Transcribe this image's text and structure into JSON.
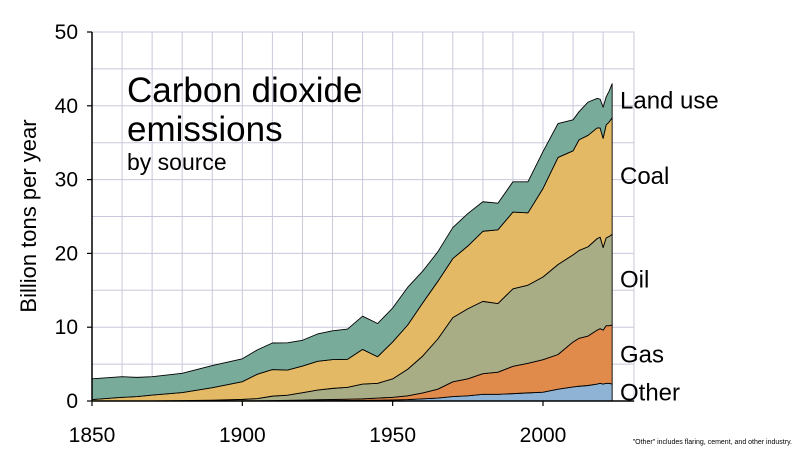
{
  "chart_data": {
    "type": "area",
    "stacked": true,
    "title": "Carbon dioxide emissions",
    "subtitle": "by source",
    "xlabel": "",
    "ylabel": "Billion tons per year",
    "xlim": [
      1850,
      2023
    ],
    "ylim": [
      0,
      50
    ],
    "x_ticks": [
      1850,
      1900,
      1950,
      2000
    ],
    "y_ticks": [
      0,
      10,
      20,
      30,
      40,
      50
    ],
    "grid": true,
    "legend": "inline labels at right edge",
    "footnote": "\"Other\" includes flaring, cement, and other industry.",
    "x": [
      1850,
      1860,
      1865,
      1870,
      1880,
      1890,
      1900,
      1905,
      1910,
      1915,
      1920,
      1925,
      1930,
      1935,
      1940,
      1945,
      1950,
      1955,
      1960,
      1965,
      1970,
      1975,
      1980,
      1985,
      1990,
      1995,
      2000,
      2005,
      2010,
      2012,
      2015,
      2018,
      2019,
      2020,
      2021,
      2022,
      2023
    ],
    "series": [
      {
        "name": "Other",
        "color": "#8fb3d4",
        "values": [
          0,
          0,
          0,
          0,
          0,
          0,
          0,
          0,
          0.01,
          0.02,
          0.03,
          0.05,
          0.06,
          0.07,
          0.09,
          0.1,
          0.15,
          0.2,
          0.3,
          0.4,
          0.6,
          0.7,
          0.9,
          0.9,
          1.0,
          1.1,
          1.2,
          1.6,
          1.9,
          2.0,
          2.1,
          2.3,
          2.4,
          2.3,
          2.4,
          2.4,
          2.3
        ]
      },
      {
        "name": "Gas",
        "color": "#e08a4c",
        "values": [
          0,
          0,
          0,
          0,
          0,
          0,
          0.02,
          0.03,
          0.05,
          0.07,
          0.1,
          0.13,
          0.15,
          0.18,
          0.2,
          0.3,
          0.35,
          0.5,
          0.8,
          1.2,
          2.0,
          2.3,
          2.8,
          3.0,
          3.7,
          4.0,
          4.4,
          4.7,
          6.1,
          6.5,
          6.7,
          7.3,
          7.4,
          7.3,
          7.8,
          7.8,
          8.0
        ]
      },
      {
        "name": "Oil",
        "color": "#a9ad85",
        "values": [
          0,
          0,
          0,
          0,
          0.05,
          0.1,
          0.2,
          0.3,
          0.6,
          0.7,
          1.0,
          1.3,
          1.5,
          1.6,
          2.0,
          2.0,
          2.5,
          3.6,
          5.0,
          6.8,
          8.7,
          9.5,
          9.8,
          9.3,
          10.5,
          10.6,
          11.2,
          12.2,
          11.8,
          11.9,
          12.1,
          12.4,
          12.4,
          11.2,
          11.9,
          12.1,
          12.3
        ]
      },
      {
        "name": "Coal",
        "color": "#e3b965",
        "values": [
          0.2,
          0.5,
          0.6,
          0.8,
          1.1,
          1.7,
          2.4,
          3.3,
          3.6,
          3.4,
          3.6,
          3.9,
          3.9,
          3.8,
          4.7,
          3.6,
          5.0,
          6.0,
          7.2,
          7.8,
          8.0,
          8.5,
          9.5,
          10.0,
          10.4,
          9.8,
          12.0,
          14.5,
          14.1,
          15.0,
          15.1,
          15.0,
          14.8,
          14.8,
          15.3,
          15.5,
          15.8
        ]
      },
      {
        "name": "Land use",
        "color": "#79ab9b",
        "values": [
          2.8,
          2.8,
          2.6,
          2.5,
          2.6,
          3.0,
          3.1,
          3.3,
          3.6,
          3.7,
          3.5,
          3.7,
          3.9,
          4.1,
          4.5,
          4.5,
          4.6,
          5.1,
          4.3,
          4.0,
          4.2,
          4.4,
          4.0,
          3.6,
          4.1,
          4.2,
          5.0,
          4.6,
          4.2,
          3.8,
          4.5,
          4.0,
          3.9,
          4.2,
          3.8,
          4.2,
          4.6
        ]
      }
    ]
  }
}
